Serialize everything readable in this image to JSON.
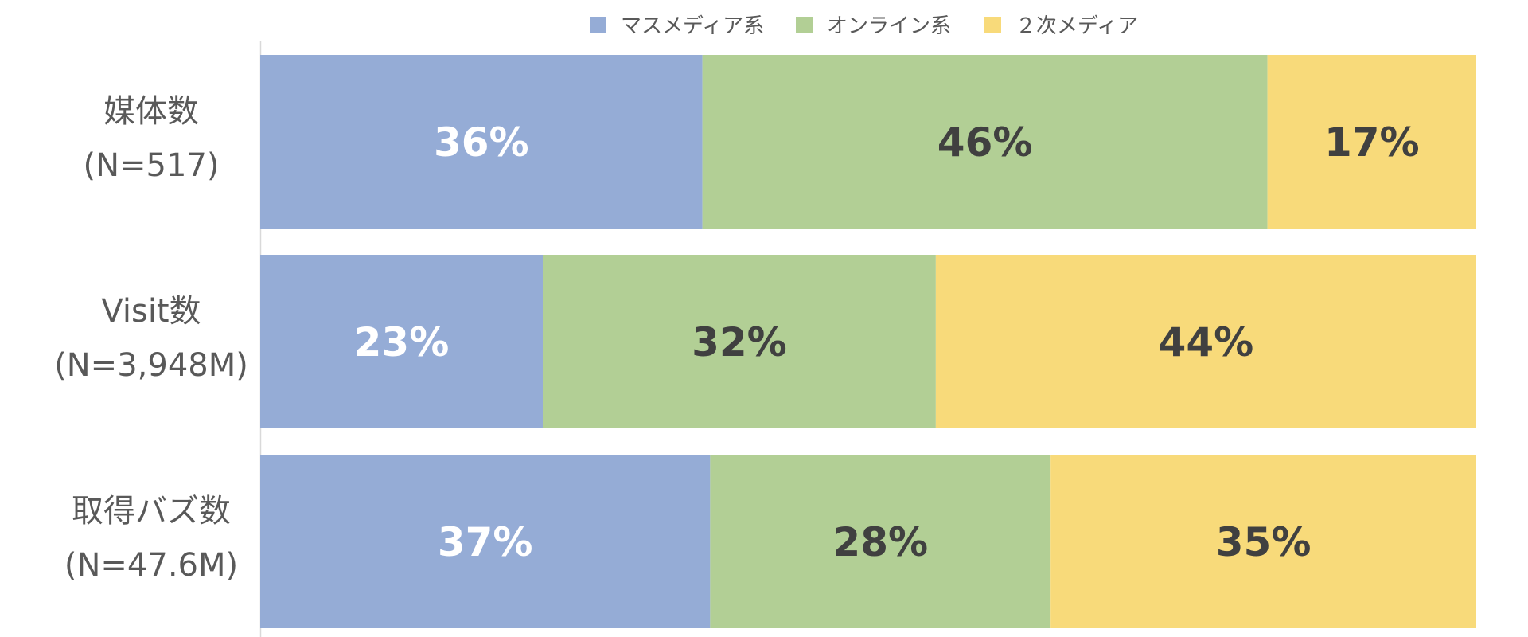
{
  "chart_data": {
    "type": "bar",
    "orientation": "horizontal",
    "stacked": "percent",
    "title": "",
    "xlabel": "",
    "ylabel": "",
    "xlim": [
      0,
      100
    ],
    "grid": false,
    "legend_position": "top-center",
    "categories": [
      [
        "媒体数",
        "(N=517)"
      ],
      [
        "Visit数",
        "(N=3,948M)"
      ],
      [
        "取得バズ数",
        "(N=47.6M)"
      ]
    ],
    "series": [
      {
        "name": "マスメディア系",
        "color": "#95ACD6",
        "label_color": "#FFFFFF",
        "values": [
          36,
          23,
          37
        ]
      },
      {
        "name": "オンライン系",
        "color": "#B2CF95",
        "label_color": "#404040",
        "values": [
          46,
          32,
          28
        ]
      },
      {
        "name": "２次メディア",
        "color": "#F8DA7A",
        "label_color": "#404040",
        "values": [
          17,
          44,
          35
        ]
      }
    ],
    "data_labels": [
      [
        "36%",
        "46%",
        "17%"
      ],
      [
        "23%",
        "32%",
        "44%"
      ],
      [
        "37%",
        "28%",
        "35%"
      ]
    ]
  }
}
